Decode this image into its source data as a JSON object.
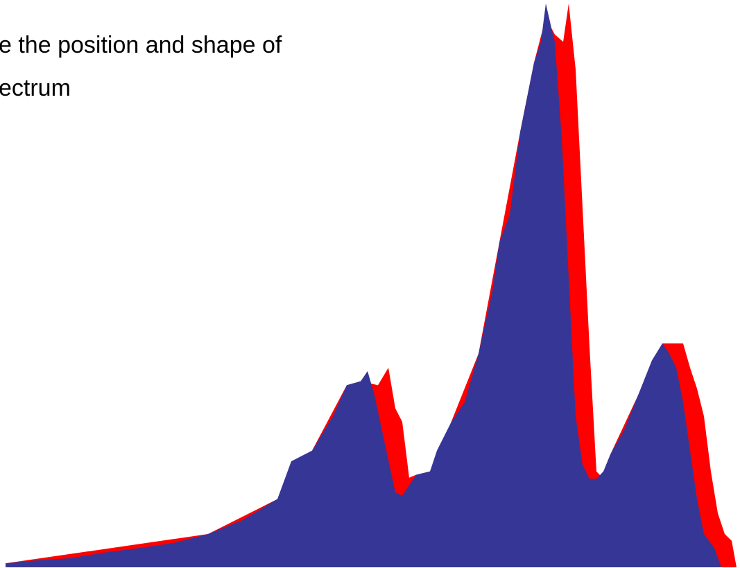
{
  "chart_data": {
    "type": "area",
    "title_lines": [
      "e the position and shape of",
      "ectrum"
    ],
    "xlim": [
      0,
      1054
    ],
    "ylim": [
      0,
      100
    ],
    "series": [
      {
        "color": "#ff0000",
        "x": [
          0,
          292,
          392,
          442,
          492,
          512,
          537,
          552,
          562,
          572,
          582,
          592,
          612,
          642,
          682,
          712,
          742,
          762,
          779,
          792,
          804,
          812,
          822,
          832,
          842,
          852,
          862,
          872,
          912,
          947,
          977,
          987,
          997,
          1007,
          1017,
          1027,
          1037,
          1047,
          1054
        ],
        "values": [
          0.7,
          5.9,
          12.1,
          20.7,
          32.3,
          33,
          32.3,
          35.4,
          28.2,
          25.8,
          15.9,
          16.4,
          17,
          25.6,
          37.9,
          57.6,
          77.2,
          89.5,
          97.5,
          94.5,
          93.2,
          100,
          88.3,
          63.7,
          39.1,
          17,
          15.7,
          20,
          30.5,
          39.7,
          39.7,
          35.4,
          31.7,
          26.8,
          17,
          9.6,
          5.9,
          4.7,
          0
        ]
      },
      {
        "color": "#363696",
        "x": [
          0,
          42,
          92,
          142,
          192,
          242,
          292,
          342,
          392,
          412,
          442,
          472,
          492,
          512,
          522,
          532,
          547,
          562,
          572,
          592,
          612,
          622,
          642,
          662,
          682,
          702,
          712,
          727,
          742,
          762,
          772,
          779,
          787,
          792,
          802,
          812,
          822,
          832,
          842,
          852,
          862,
          872,
          892,
          912,
          932,
          947,
          957,
          967,
          977,
          987,
          997,
          1007,
          1022,
          1032
        ],
        "values": [
          0.7,
          1.2,
          1.6,
          2.6,
          3.4,
          4.3,
          5.9,
          8.4,
          12.1,
          18.8,
          20.7,
          26.8,
          32.3,
          33,
          34.8,
          30.5,
          21.9,
          13.3,
          12.7,
          16.4,
          17,
          20.7,
          25.6,
          29.3,
          37.9,
          49,
          57.6,
          62.5,
          77.2,
          89.5,
          93.2,
          100,
          95.7,
          93.2,
          76,
          51.4,
          26.8,
          18.2,
          15.7,
          15.7,
          17,
          20,
          24.4,
          30.5,
          36.7,
          39.7,
          37.9,
          35.4,
          29.3,
          20.7,
          12.1,
          5.9,
          3.4,
          0
        ]
      }
    ]
  }
}
